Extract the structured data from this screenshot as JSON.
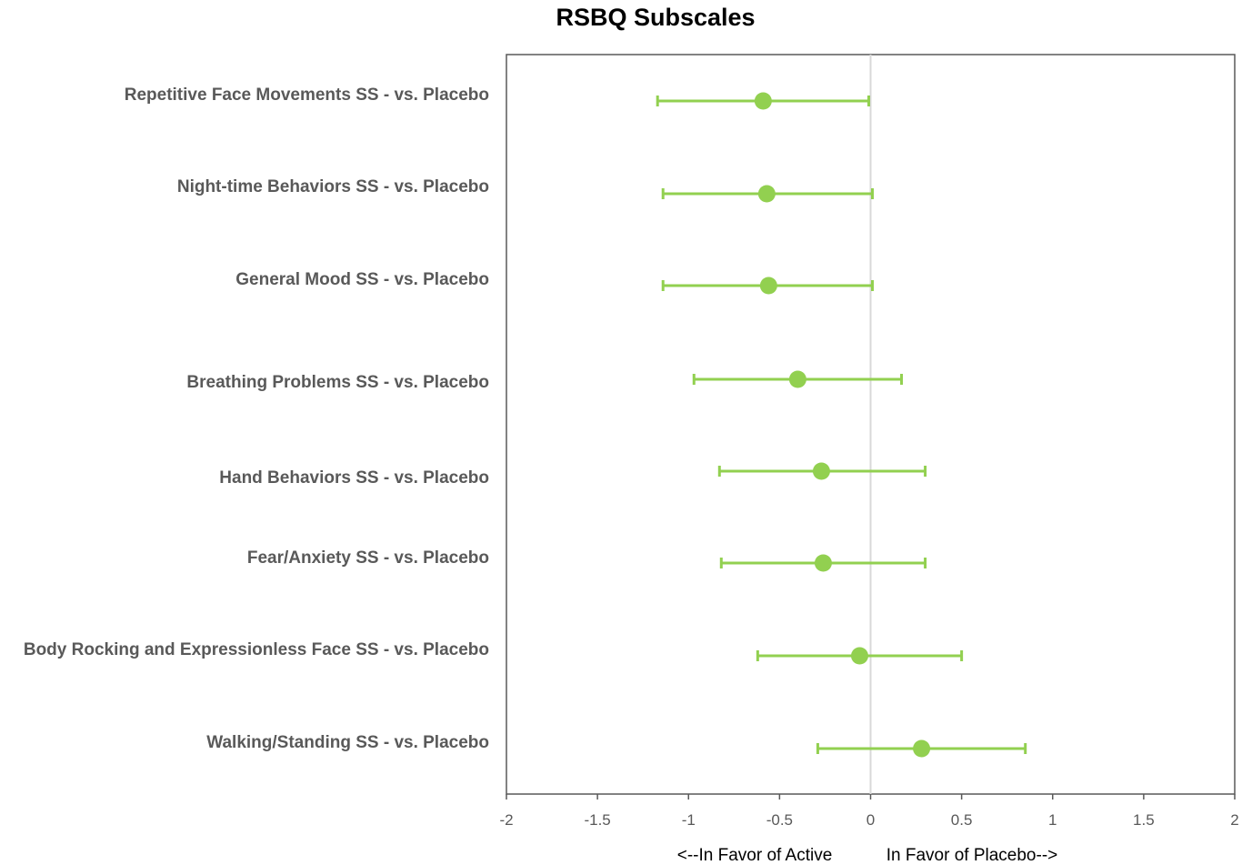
{
  "chart_data": {
    "type": "scatter",
    "title": "RSBQ Subscales",
    "categories": [
      "Repetitive Face Movements SS - vs. Placebo",
      "Night-time Behaviors SS - vs. Placebo",
      "General Mood SS - vs. Placebo",
      "Breathing Problems SS - vs. Placebo",
      "Hand Behaviors SS - vs. Placebo",
      "Fear/Anxiety SS - vs. Placebo",
      "Body Rocking and Expressionless Face SS - vs. Placebo",
      "Walking/Standing SS - vs. Placebo"
    ],
    "series": [
      {
        "estimates": [
          -0.59,
          -0.57,
          -0.56,
          -0.4,
          -0.27,
          -0.26,
          -0.06,
          0.28
        ],
        "lower": [
          -1.17,
          -1.14,
          -1.14,
          -0.97,
          -0.83,
          -0.82,
          -0.62,
          -0.29
        ],
        "upper": [
          -0.01,
          0.01,
          0.01,
          0.17,
          0.3,
          0.3,
          0.5,
          0.85
        ]
      }
    ],
    "xlim": [
      -2,
      2
    ],
    "xticks": [
      -2,
      -1.5,
      -1,
      -0.5,
      0,
      0.5,
      1,
      1.5,
      2
    ],
    "xtick_labels": [
      "-2",
      "-1.5",
      "-1",
      "-0.5",
      "0",
      "0.5",
      "1",
      "1.5",
      "2"
    ],
    "reference_line": 0,
    "grid": false,
    "direction_labels": {
      "left": "<--In Favor of Active",
      "right": "In Favor of Placebo-->"
    },
    "colors": {
      "marker": "#92d050",
      "reference": "#d9d9d9",
      "axis": "#595959"
    }
  }
}
